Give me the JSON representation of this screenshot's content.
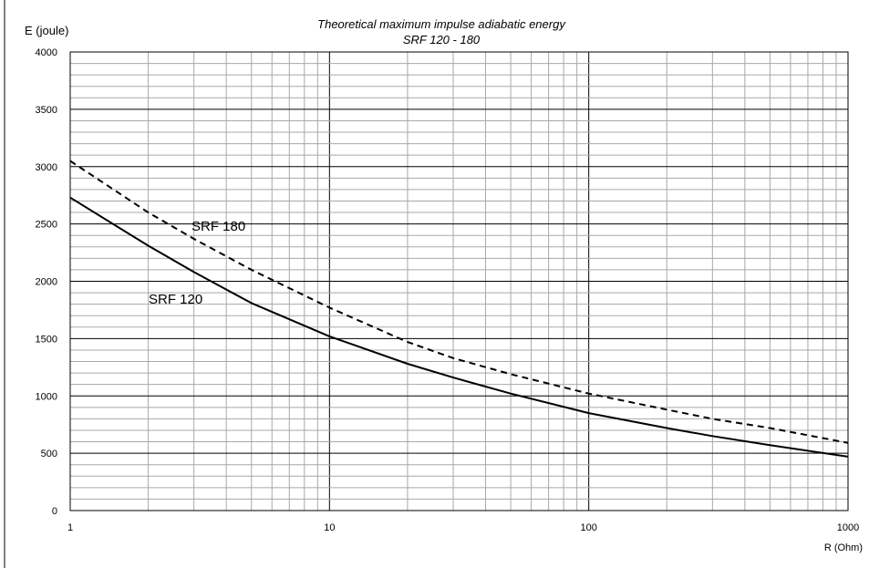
{
  "chart_data": {
    "type": "line",
    "title": "Theoretical maximum impulse adiabatic energy",
    "subtitle": "SRF 120 - 180",
    "xlabel": "R (Ohm)",
    "ylabel": "E (joule)",
    "x_scale": "log",
    "xlim": [
      1,
      1000
    ],
    "ylim": [
      0,
      4000
    ],
    "x_ticks": [
      "1",
      "10",
      "100",
      "1000"
    ],
    "y_ticks": [
      "0",
      "500",
      "1000",
      "1500",
      "2000",
      "2500",
      "3000",
      "3500",
      "4000"
    ],
    "grid": true,
    "series": [
      {
        "name": "SRF 180",
        "line_style": "dashed",
        "x": [
          1,
          2,
          3,
          5,
          10,
          20,
          30,
          50,
          100,
          200,
          300,
          500,
          1000
        ],
        "y": [
          3050,
          2600,
          2370,
          2100,
          1770,
          1470,
          1330,
          1190,
          1020,
          880,
          800,
          720,
          590
        ]
      },
      {
        "name": "SRF 120",
        "line_style": "solid",
        "x": [
          1,
          2,
          3,
          5,
          10,
          20,
          30,
          50,
          100,
          200,
          300,
          500,
          1000
        ],
        "y": [
          2730,
          2310,
          2080,
          1810,
          1520,
          1280,
          1160,
          1020,
          850,
          720,
          650,
          570,
          470
        ]
      }
    ],
    "colors": {
      "line": "#000000",
      "grid": "#000000",
      "background": "#ffffff"
    }
  }
}
